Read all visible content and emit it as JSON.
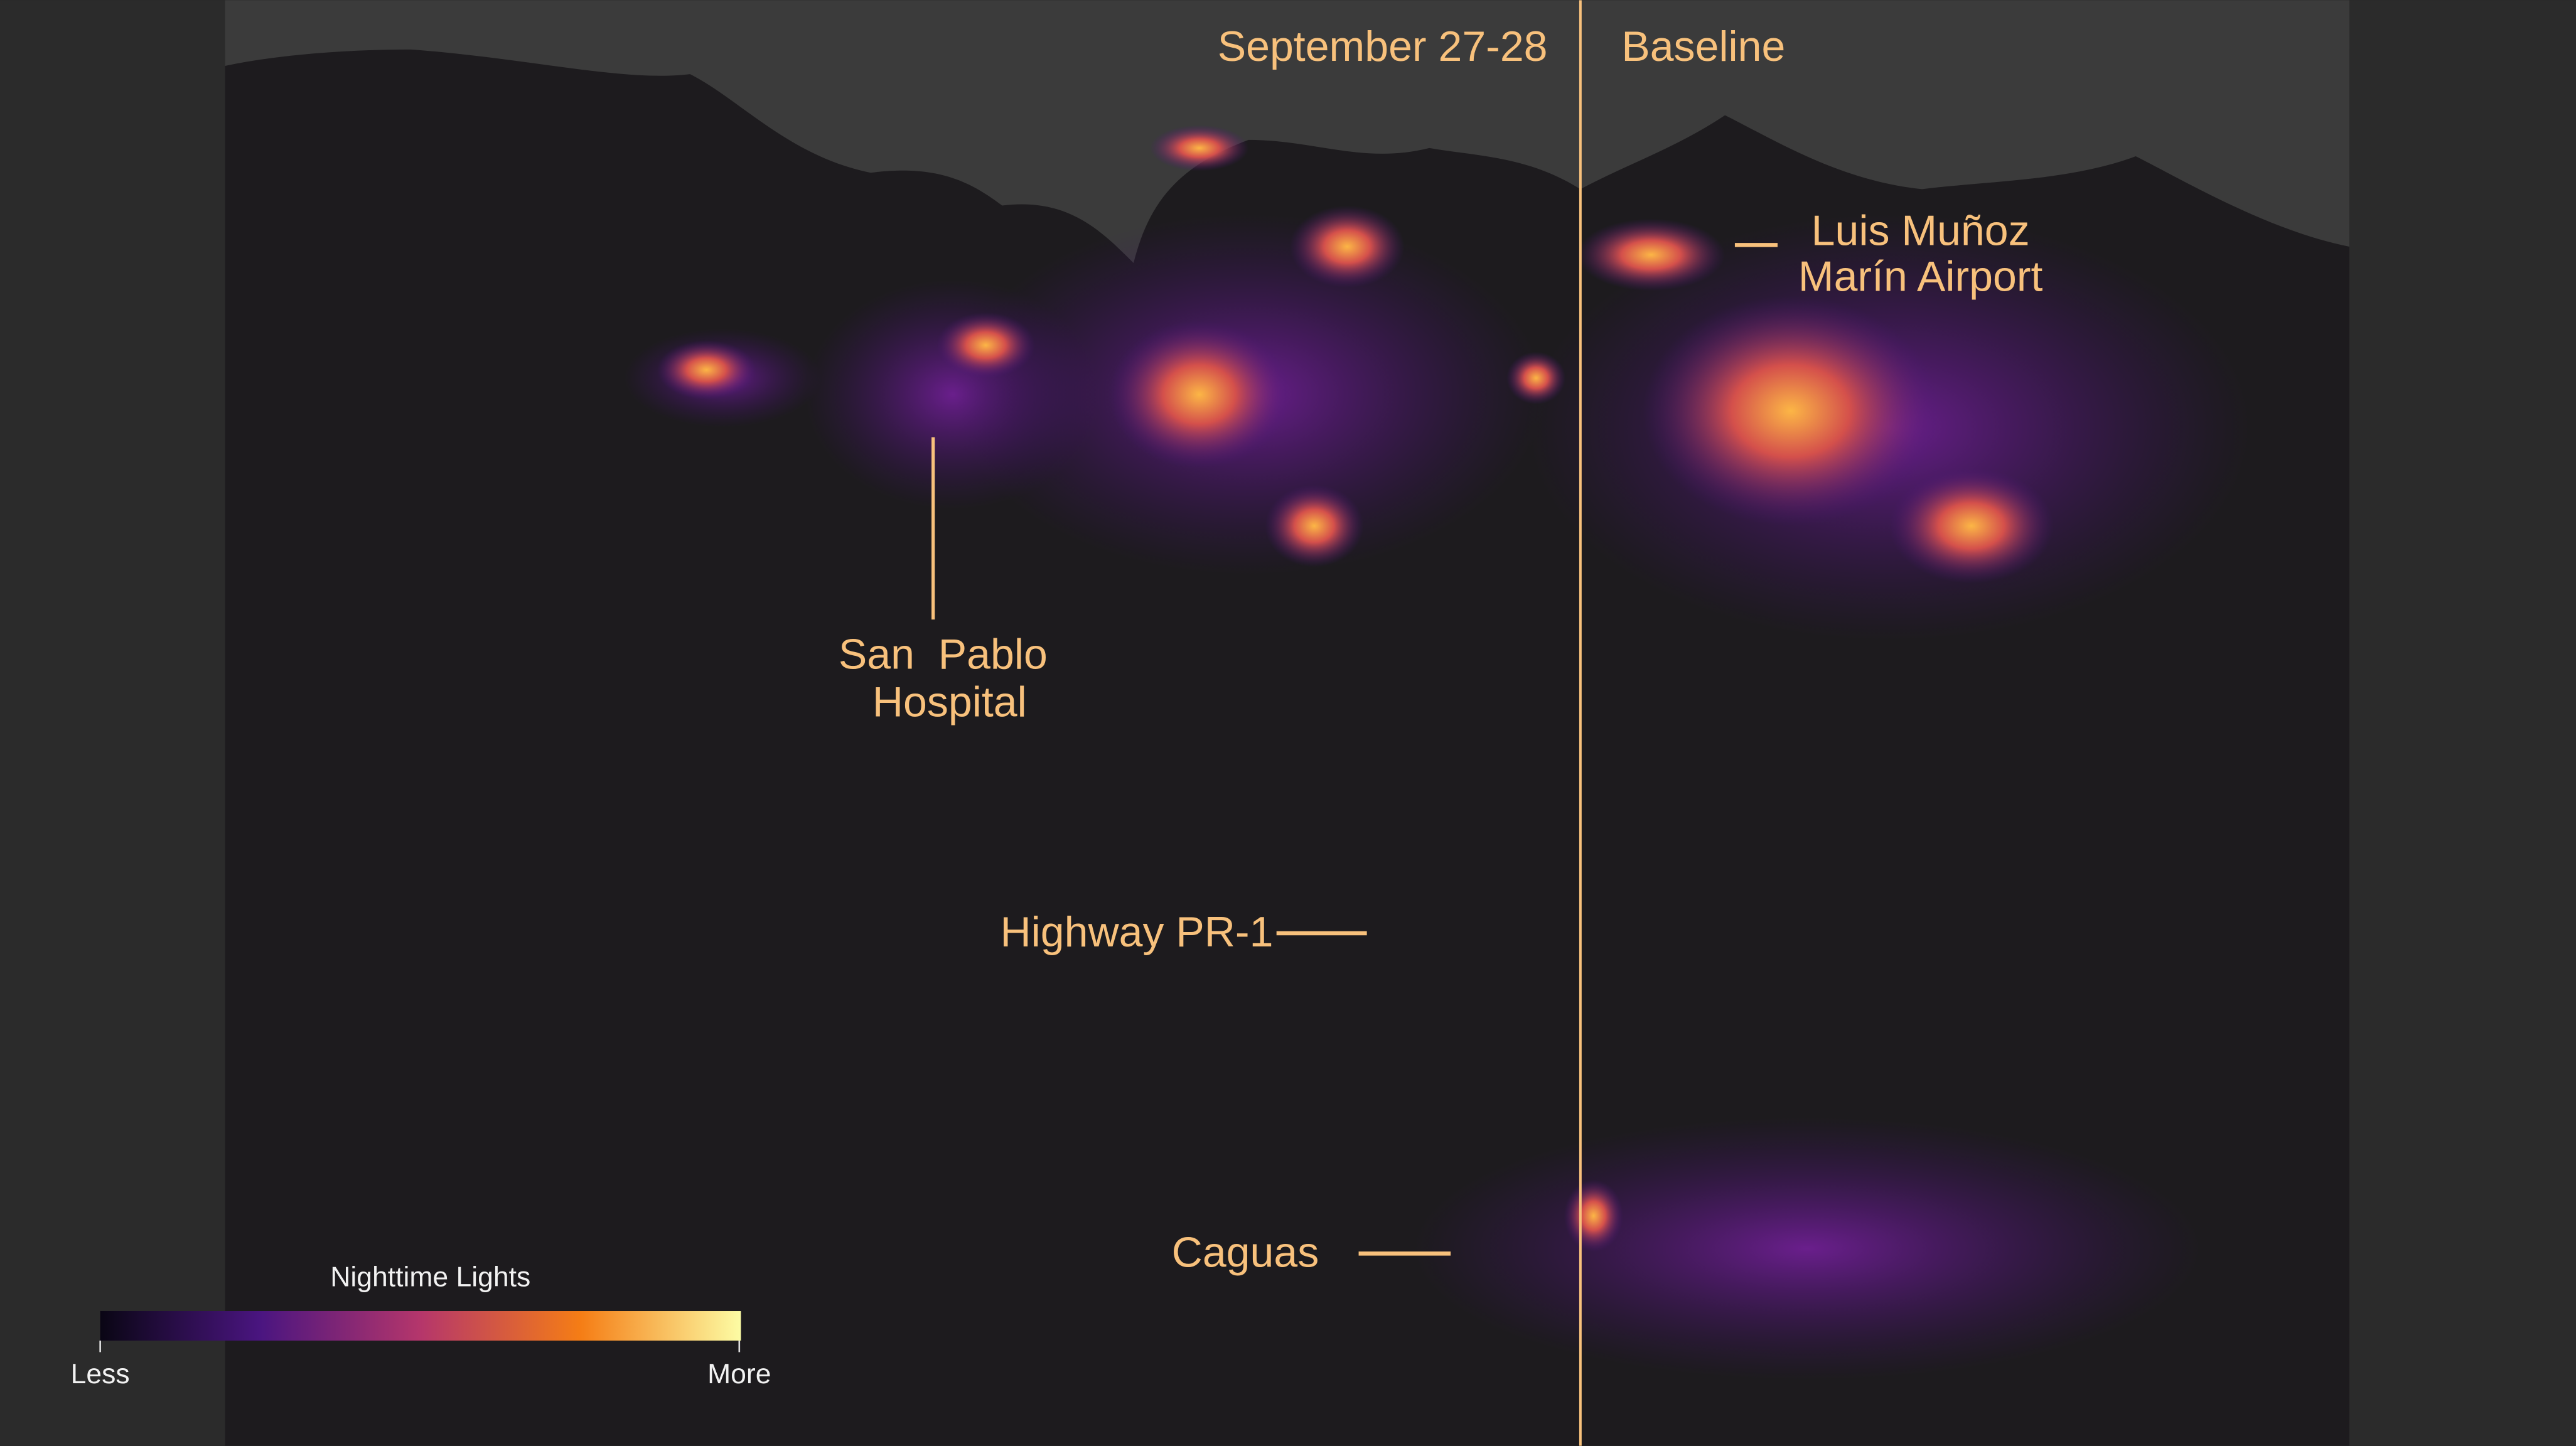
{
  "panels": {
    "left": "September 27-28",
    "right": "Baseline"
  },
  "annotations": {
    "airport": [
      "Luis Muñoz",
      "Marín Airport"
    ],
    "hospital": [
      "San  Pablo",
      "Hospital"
    ],
    "highway": "Highway PR-1",
    "city": "Caguas"
  },
  "legend": {
    "title": "Nighttime Lights",
    "low": "Less",
    "high": "More"
  }
}
